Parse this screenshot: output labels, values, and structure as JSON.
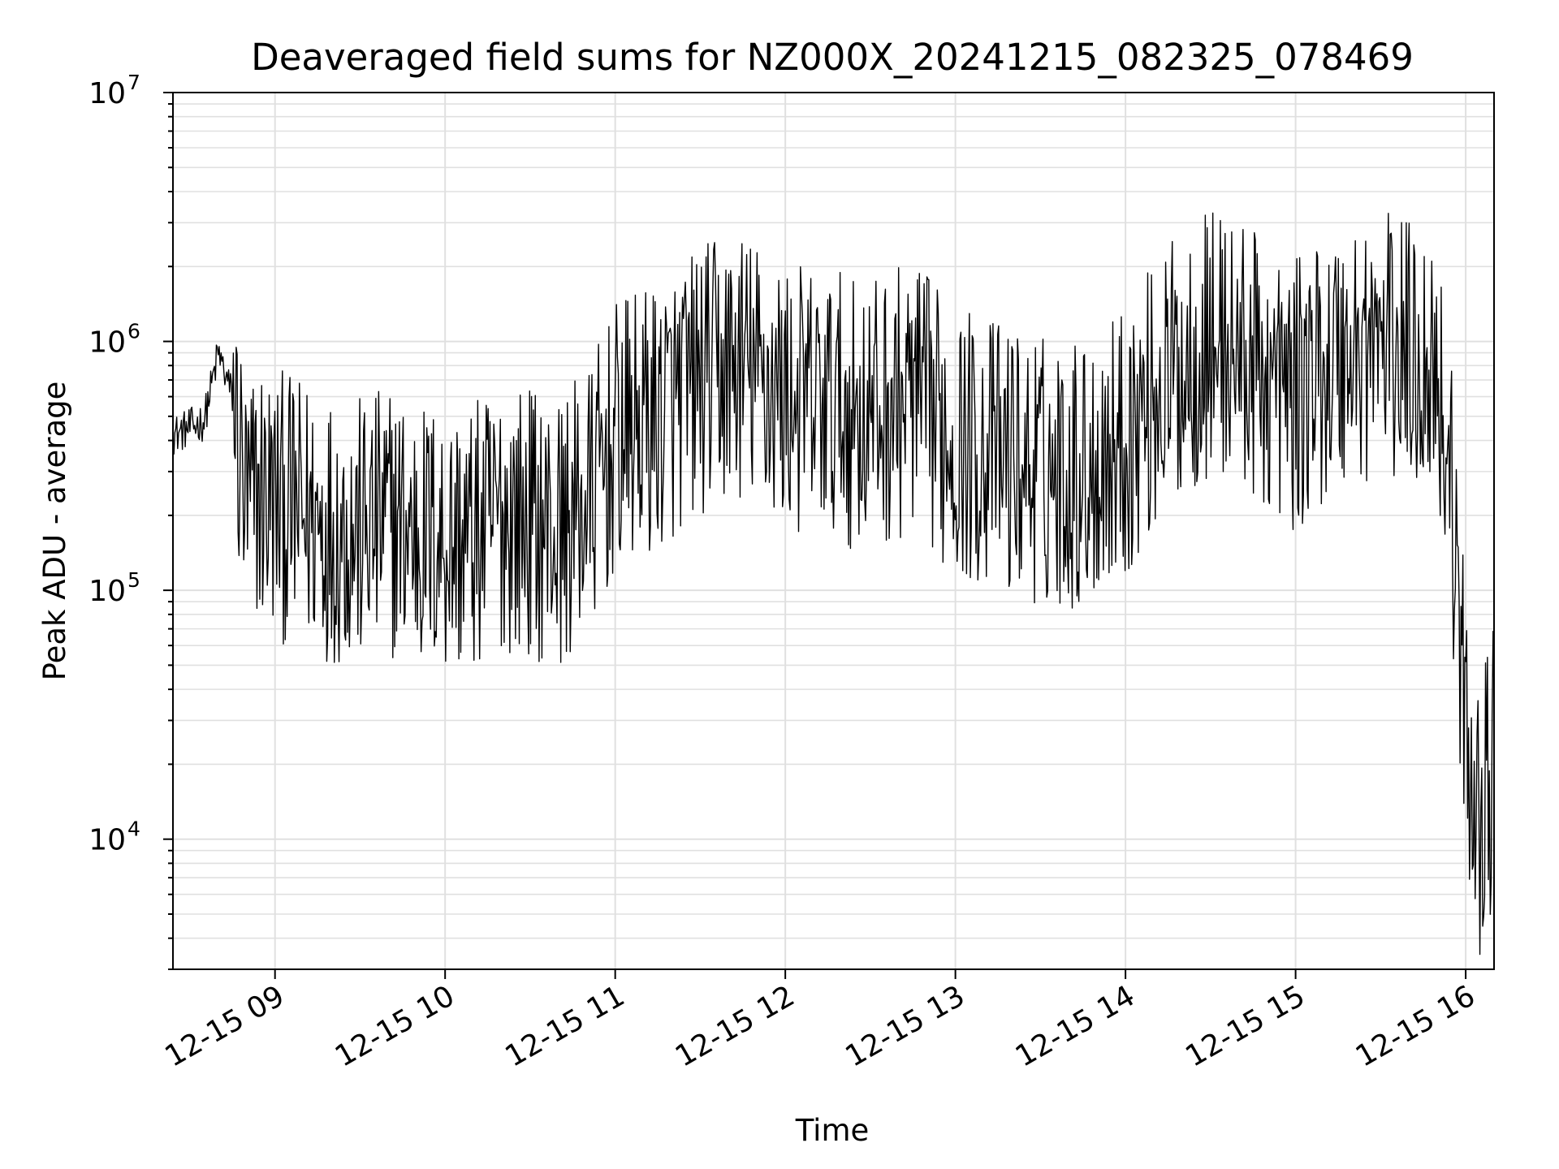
{
  "chart_data": {
    "type": "line",
    "title": "Deaveraged field sums for NZ000X_20241215_082325_078469",
    "xlabel": "Time",
    "ylabel": "Peak ADU - average",
    "yscale": "log",
    "xlim": [
      "12-15 08:24",
      "12-15 16:10"
    ],
    "ylim": [
      3000,
      10000000
    ],
    "x_ticks": [
      "12-15 09",
      "12-15 10",
      "12-15 11",
      "12-15 12",
      "12-15 13",
      "12-15 14",
      "12-15 15",
      "12-15 16"
    ],
    "y_ticks": [
      {
        "value": 10000,
        "base": "10",
        "exp": "4"
      },
      {
        "value": 100000,
        "base": "10",
        "exp": "5"
      },
      {
        "value": 1000000,
        "base": "10",
        "exp": "6"
      },
      {
        "value": 10000000,
        "base": "10",
        "exp": "7"
      }
    ],
    "grid": true,
    "line_color": "#000000",
    "series": [
      {
        "x": [
          "12-15 08:24",
          "12-15 08:30",
          "12-15 08:35",
          "12-15 08:40",
          "12-15 08:45",
          "12-15 08:50",
          "12-15 08:55",
          "12-15 09:00",
          "12-15 09:10",
          "12-15 09:20",
          "12-15 09:30",
          "12-15 09:40",
          "12-15 09:50",
          "12-15 10:00",
          "12-15 10:10",
          "12-15 10:20",
          "12-15 10:30",
          "12-15 10:40",
          "12-15 10:50",
          "12-15 11:00",
          "12-15 11:15",
          "12-15 11:30",
          "12-15 11:45",
          "12-15 12:00",
          "12-15 12:15",
          "12-15 12:30",
          "12-15 12:45",
          "12-15 13:00",
          "12-15 13:15",
          "12-15 13:30",
          "12-15 13:45",
          "12-15 14:00",
          "12-15 14:10",
          "12-15 14:20",
          "12-15 14:30",
          "12-15 14:40",
          "12-15 14:50",
          "12-15 15:00",
          "12-15 15:10",
          "12-15 15:20",
          "12-15 15:30",
          "12-15 15:40",
          "12-15 15:50",
          "12-15 15:55",
          "12-15 16:00",
          "12-15 16:05",
          "12-15 16:10"
        ],
        "y": [
          420000,
          450000,
          480000,
          900000,
          600000,
          200000,
          250000,
          220000,
          200000,
          180000,
          170000,
          190000,
          170000,
          160000,
          160000,
          200000,
          190000,
          170000,
          220000,
          400000,
          500000,
          700000,
          800000,
          600000,
          550000,
          500000,
          600000,
          400000,
          350000,
          300000,
          300000,
          400000,
          600000,
          800000,
          1000000,
          900000,
          700000,
          600000,
          800000,
          900000,
          1000000,
          900000,
          800000,
          250000,
          25000,
          12000,
          20000
        ]
      }
    ]
  }
}
